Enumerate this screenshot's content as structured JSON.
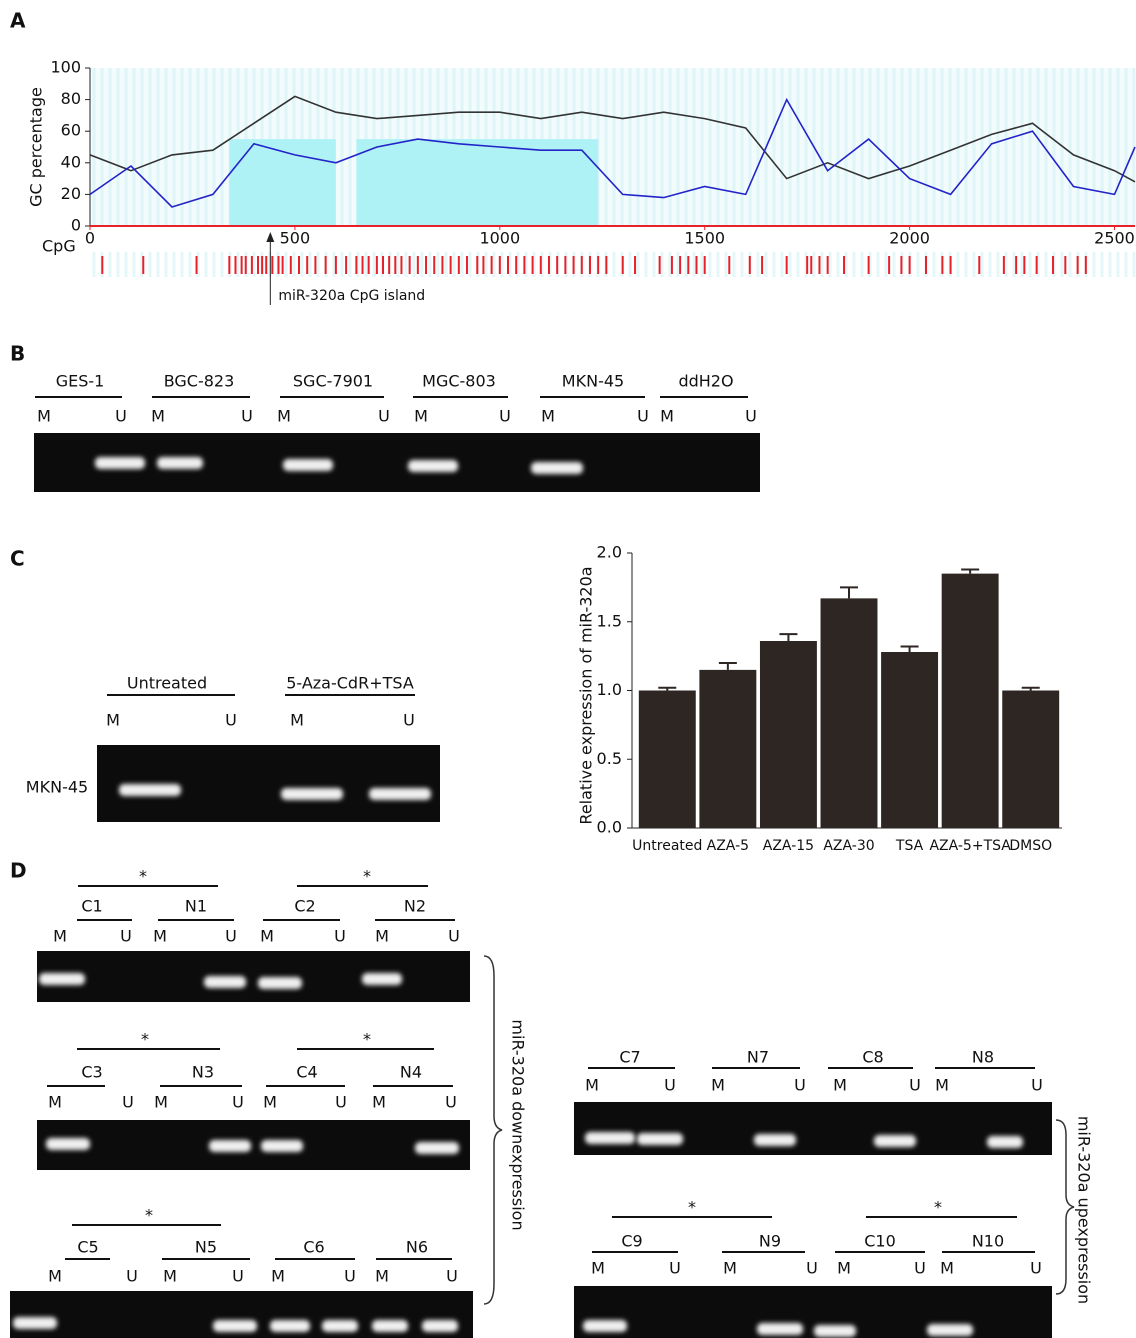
{
  "panel_labels": [
    "A",
    "B",
    "C",
    "D"
  ],
  "chart_data": [
    {
      "type": "line",
      "y_label": "GC percentage",
      "track_label": "CpG",
      "annotation": {
        "text": "miR-320a CpG island",
        "x": 440
      },
      "xlim": [
        0,
        2550
      ],
      "xticks": [
        0,
        500,
        1000,
        1500,
        2000,
        2500
      ],
      "ylim": [
        0,
        100
      ],
      "yticks": [
        0,
        20,
        40,
        60,
        80,
        100
      ],
      "x": [
        0,
        100,
        200,
        300,
        400,
        500,
        600,
        700,
        800,
        900,
        1000,
        1100,
        1200,
        1300,
        1400,
        1500,
        1600,
        1700,
        1800,
        1900,
        2000,
        2100,
        2200,
        2300,
        2400,
        2500,
        2550
      ],
      "series": [
        {
          "color": "#333333",
          "values": [
            45,
            35,
            45,
            48,
            65,
            82,
            72,
            68,
            70,
            72,
            72,
            68,
            72,
            68,
            72,
            68,
            62,
            30,
            40,
            30,
            38,
            48,
            58,
            65,
            45,
            35,
            28
          ]
        },
        {
          "color": "#2323c8",
          "values": [
            20,
            38,
            12,
            20,
            52,
            45,
            40,
            50,
            55,
            52,
            50,
            48,
            48,
            20,
            18,
            25,
            20,
            80,
            35,
            55,
            30,
            20,
            52,
            60,
            25,
            20,
            50
          ]
        }
      ],
      "shaded_regions": [
        [
          340,
          600
        ],
        [
          650,
          1240
        ]
      ],
      "shade_color": "#aef2f6",
      "cpg_color": "#e8202a",
      "cpg_sites": [
        30,
        130,
        260,
        340,
        355,
        370,
        380,
        395,
        410,
        420,
        430,
        445,
        460,
        470,
        490,
        510,
        530,
        550,
        575,
        600,
        625,
        650,
        665,
        680,
        700,
        715,
        730,
        745,
        760,
        780,
        800,
        820,
        840,
        860,
        880,
        900,
        920,
        945,
        960,
        980,
        1000,
        1020,
        1040,
        1060,
        1080,
        1100,
        1120,
        1140,
        1160,
        1180,
        1200,
        1220,
        1240,
        1260,
        1300,
        1330,
        1390,
        1420,
        1440,
        1460,
        1480,
        1500,
        1560,
        1610,
        1640,
        1700,
        1750,
        1760,
        1780,
        1800,
        1840,
        1900,
        1950,
        1980,
        2000,
        2040,
        2080,
        2100,
        2170,
        2230,
        2260,
        2280,
        2310,
        2350,
        2380,
        2410,
        2430
      ]
    },
    {
      "type": "bar",
      "y_label": "Relative expression of miR-320a",
      "categories": [
        "Untreated",
        "AZA-5",
        "AZA-15",
        "AZA-30",
        "TSA",
        "AZA-5+TSA",
        "DMSO"
      ],
      "values": [
        1.0,
        1.15,
        1.36,
        1.67,
        1.28,
        1.85,
        1.0
      ],
      "errors": [
        0.02,
        0.05,
        0.05,
        0.08,
        0.04,
        0.03,
        0.02
      ],
      "color": "#2e2623",
      "ylim": [
        0,
        2
      ],
      "yticks": [
        {
          "value": 0,
          "label": "0.0"
        },
        {
          "value": 0.5,
          "label": "0.5"
        },
        {
          "value": 1,
          "label": "1.0"
        },
        {
          "value": 1.5,
          "label": "1.5"
        },
        {
          "value": 2,
          "label": "2.0"
        }
      ]
    }
  ],
  "panel_b": {
    "groups": [
      {
        "label": "GES-1",
        "lanes": [
          "M",
          "U"
        ]
      },
      {
        "label": "BGC-823",
        "lanes": [
          "M",
          "U"
        ]
      },
      {
        "label": "SGC-7901",
        "lanes": [
          "M",
          "U"
        ]
      },
      {
        "label": "MGC-803",
        "lanes": [
          "M",
          "U"
        ]
      },
      {
        "label": "MKN-45",
        "lanes": [
          "M",
          "U"
        ]
      },
      {
        "label": "ddH2O",
        "lanes": [
          "M",
          "U"
        ]
      }
    ]
  },
  "panel_c_gel": {
    "row_label": "MKN-45",
    "groups": [
      {
        "label": "Untreated",
        "lanes": [
          "M",
          "U"
        ]
      },
      {
        "label": "5-Aza-CdR+TSA",
        "lanes": [
          "M",
          "U"
        ]
      }
    ]
  },
  "panel_d": {
    "gels": [
      {
        "stars": [
          "*",
          "*"
        ],
        "groups": [
          {
            "label": "C1",
            "lanes": [
              "M",
              "U"
            ]
          },
          {
            "label": "N1",
            "lanes": [
              "M",
              "U"
            ]
          },
          {
            "label": "C2",
            "lanes": [
              "M",
              "U"
            ]
          },
          {
            "label": "N2",
            "lanes": [
              "M",
              "U"
            ]
          }
        ]
      },
      {
        "stars": [
          "*",
          "*"
        ],
        "groups": [
          {
            "label": "C3",
            "lanes": [
              "M",
              "U"
            ]
          },
          {
            "label": "N3",
            "lanes": [
              "M",
              "U"
            ]
          },
          {
            "label": "C4",
            "lanes": [
              "M",
              "U"
            ]
          },
          {
            "label": "N4",
            "lanes": [
              "M",
              "U"
            ]
          }
        ]
      },
      {
        "stars": [
          "*"
        ],
        "groups": [
          {
            "label": "C5",
            "lanes": [
              "M",
              "U"
            ]
          },
          {
            "label": "N5",
            "lanes": [
              "M",
              "U"
            ]
          },
          {
            "label": "C6",
            "lanes": [
              "M",
              "U"
            ]
          },
          {
            "label": "N6",
            "lanes": [
              "M",
              "U"
            ]
          }
        ]
      },
      {
        "groups": [
          {
            "label": "C7",
            "lanes": [
              "M",
              "U"
            ]
          },
          {
            "label": "N7",
            "lanes": [
              "M",
              "U"
            ]
          },
          {
            "label": "C8",
            "lanes": [
              "M",
              "U"
            ]
          },
          {
            "label": "N8",
            "lanes": [
              "M",
              "U"
            ]
          }
        ]
      },
      {
        "stars": [
          "*",
          "*"
        ],
        "groups": [
          {
            "label": "C9",
            "lanes": [
              "M",
              "U"
            ]
          },
          {
            "label": "N9",
            "lanes": [
              "M",
              "U"
            ]
          },
          {
            "label": "C10",
            "lanes": [
              "M",
              "U"
            ]
          },
          {
            "label": "N10",
            "lanes": [
              "M",
              "U"
            ]
          }
        ]
      }
    ],
    "annotations": [
      "miR-320a downexpression",
      "miR-320a upexpression"
    ]
  }
}
